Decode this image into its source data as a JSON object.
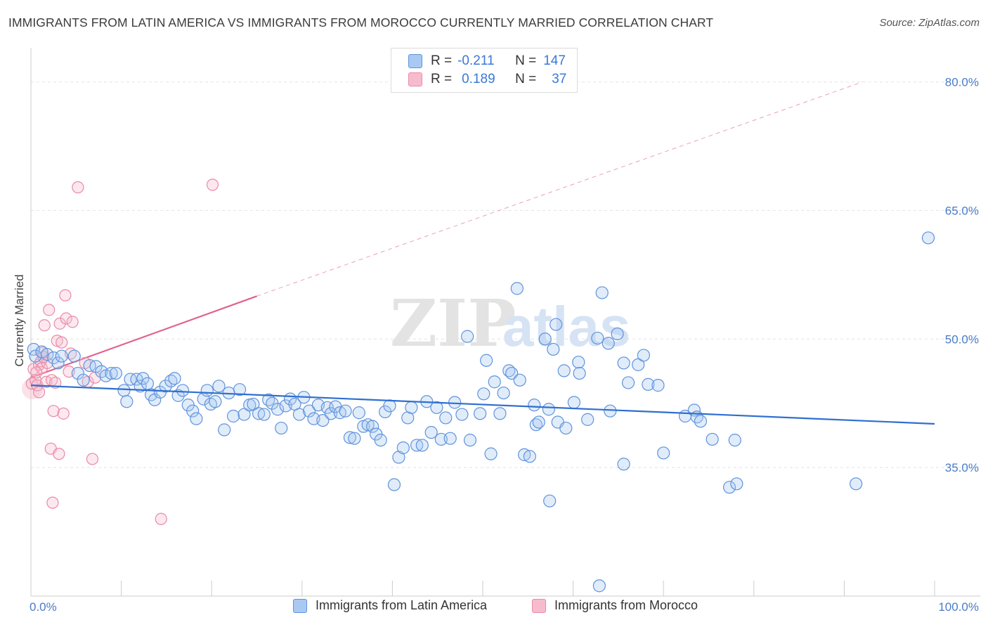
{
  "title": "IMMIGRANTS FROM LATIN AMERICA VS IMMIGRANTS FROM MOROCCO CURRENTLY MARRIED CORRELATION CHART",
  "source": "Source: ZipAtlas.com",
  "watermark": {
    "zip": "ZIP",
    "atlas": "atlas"
  },
  "colors": {
    "blue_fill": "#a9c8f2",
    "blue_stroke": "#5f93db",
    "blue_line": "#2f6fd0",
    "pink_fill": "#f6bccd",
    "pink_stroke": "#e98aa8",
    "pink_line": "#e0618e",
    "axis_text": "#4a7cc7",
    "grid": "#e2e2e2"
  },
  "legend": {
    "rows": [
      {
        "r_label": "R =",
        "r_value": "-0.211",
        "n_label": "N =",
        "n_value": "147"
      },
      {
        "r_label": "R =",
        "r_value": "0.189",
        "n_label": "N =",
        "n_value": "37"
      }
    ]
  },
  "chart_data": {
    "type": "scatter",
    "title": "IMMIGRANTS FROM LATIN AMERICA VS IMMIGRANTS FROM MOROCCO CURRENTLY MARRIED CORRELATION CHART",
    "xlabel": "",
    "ylabel": "Currently Married",
    "xlim": [
      0,
      100
    ],
    "ylim": [
      20,
      83
    ],
    "x_tick_labels": [
      "0.0%",
      "100.0%"
    ],
    "y_ticks": [
      35,
      50,
      65,
      80
    ],
    "y_tick_labels": [
      "35.0%",
      "50.0%",
      "65.0%",
      "80.0%"
    ],
    "grid": true,
    "legend_placement": "top-center and bottom",
    "series": [
      {
        "name": "Immigrants from Latin America",
        "color": "#a9c8f2",
        "trend": {
          "x": [
            0,
            100
          ],
          "y": [
            44.6,
            40.1
          ],
          "style": "solid"
        },
        "points": [
          [
            0.3,
            48.8
          ],
          [
            0.5,
            48.0
          ],
          [
            1.2,
            48.5
          ],
          [
            1.8,
            48.2
          ],
          [
            2.5,
            47.8
          ],
          [
            3.0,
            47.2
          ],
          [
            3.4,
            48.0
          ],
          [
            4.8,
            48.0
          ],
          [
            5.2,
            46.0
          ],
          [
            5.8,
            45.2
          ],
          [
            6.5,
            46.9
          ],
          [
            7.2,
            46.8
          ],
          [
            7.8,
            46.2
          ],
          [
            8.3,
            45.7
          ],
          [
            8.9,
            46.0
          ],
          [
            9.4,
            46.0
          ],
          [
            10.3,
            44.0
          ],
          [
            10.6,
            42.7
          ],
          [
            11.0,
            45.3
          ],
          [
            11.7,
            45.3
          ],
          [
            12.1,
            44.5
          ],
          [
            12.4,
            45.4
          ],
          [
            12.9,
            44.8
          ],
          [
            13.3,
            43.5
          ],
          [
            13.7,
            42.9
          ],
          [
            14.3,
            43.8
          ],
          [
            14.9,
            44.5
          ],
          [
            15.5,
            45.1
          ],
          [
            15.9,
            45.4
          ],
          [
            16.3,
            43.4
          ],
          [
            16.8,
            44.0
          ],
          [
            17.4,
            42.3
          ],
          [
            17.9,
            41.6
          ],
          [
            18.3,
            40.7
          ],
          [
            19.1,
            43.0
          ],
          [
            19.5,
            44.0
          ],
          [
            19.9,
            42.4
          ],
          [
            20.4,
            42.7
          ],
          [
            20.8,
            44.5
          ],
          [
            21.4,
            39.4
          ],
          [
            21.9,
            43.7
          ],
          [
            22.4,
            41.0
          ],
          [
            23.1,
            44.1
          ],
          [
            23.6,
            41.2
          ],
          [
            24.2,
            42.3
          ],
          [
            24.6,
            42.4
          ],
          [
            25.2,
            41.3
          ],
          [
            25.8,
            41.2
          ],
          [
            26.3,
            42.9
          ],
          [
            26.7,
            42.5
          ],
          [
            27.3,
            41.8
          ],
          [
            27.7,
            39.6
          ],
          [
            28.2,
            42.2
          ],
          [
            28.7,
            43.0
          ],
          [
            29.2,
            42.4
          ],
          [
            29.7,
            41.2
          ],
          [
            30.2,
            43.2
          ],
          [
            30.8,
            41.6
          ],
          [
            31.3,
            40.7
          ],
          [
            31.8,
            42.3
          ],
          [
            32.3,
            40.5
          ],
          [
            32.8,
            42.0
          ],
          [
            33.2,
            41.3
          ],
          [
            33.7,
            42.1
          ],
          [
            34.2,
            41.4
          ],
          [
            34.8,
            41.6
          ],
          [
            35.3,
            38.5
          ],
          [
            35.8,
            38.4
          ],
          [
            36.3,
            41.4
          ],
          [
            36.8,
            39.8
          ],
          [
            37.3,
            40.0
          ],
          [
            37.8,
            39.8
          ],
          [
            38.2,
            38.9
          ],
          [
            38.7,
            38.2
          ],
          [
            39.2,
            41.5
          ],
          [
            39.7,
            42.2
          ],
          [
            40.2,
            33.0
          ],
          [
            40.7,
            36.2
          ],
          [
            41.2,
            37.3
          ],
          [
            41.7,
            40.8
          ],
          [
            42.1,
            42.0
          ],
          [
            42.7,
            37.6
          ],
          [
            43.3,
            37.6
          ],
          [
            43.8,
            42.7
          ],
          [
            44.3,
            39.1
          ],
          [
            44.9,
            42.0
          ],
          [
            45.4,
            38.3
          ],
          [
            45.9,
            40.8
          ],
          [
            46.4,
            38.4
          ],
          [
            46.9,
            42.6
          ],
          [
            47.7,
            41.2
          ],
          [
            48.3,
            50.3
          ],
          [
            48.6,
            38.2
          ],
          [
            49.7,
            41.3
          ],
          [
            50.1,
            43.6
          ],
          [
            50.4,
            47.5
          ],
          [
            50.9,
            36.6
          ],
          [
            51.3,
            45.0
          ],
          [
            51.9,
            41.3
          ],
          [
            52.3,
            43.7
          ],
          [
            52.9,
            46.3
          ],
          [
            53.2,
            46.0
          ],
          [
            54.1,
            45.2
          ],
          [
            54.6,
            36.5
          ],
          [
            55.2,
            36.3
          ],
          [
            55.7,
            42.3
          ],
          [
            55.9,
            40.0
          ],
          [
            56.2,
            40.3
          ],
          [
            56.9,
            50.0
          ],
          [
            57.3,
            41.8
          ],
          [
            57.8,
            48.8
          ],
          [
            58.3,
            40.3
          ],
          [
            59.0,
            46.3
          ],
          [
            59.2,
            39.6
          ],
          [
            60.1,
            42.6
          ],
          [
            60.6,
            47.3
          ],
          [
            60.7,
            46.0
          ],
          [
            61.6,
            40.6
          ],
          [
            62.7,
            50.1
          ],
          [
            63.9,
            49.5
          ],
          [
            64.1,
            41.6
          ],
          [
            64.9,
            50.6
          ],
          [
            65.6,
            47.2
          ],
          [
            66.1,
            44.9
          ],
          [
            67.2,
            47.0
          ],
          [
            67.8,
            48.1
          ],
          [
            68.3,
            44.7
          ],
          [
            69.4,
            44.6
          ],
          [
            70.0,
            36.7
          ],
          [
            72.4,
            41.0
          ],
          [
            73.4,
            41.7
          ],
          [
            73.7,
            40.9
          ],
          [
            74.1,
            40.4
          ],
          [
            75.4,
            38.3
          ],
          [
            77.3,
            32.7
          ],
          [
            77.9,
            38.2
          ],
          [
            78.1,
            33.1
          ],
          [
            91.3,
            33.1
          ],
          [
            99.3,
            61.8
          ],
          [
            53.8,
            55.9
          ],
          [
            63.2,
            55.4
          ],
          [
            58.1,
            51.7
          ],
          [
            62.9,
            21.2
          ],
          [
            57.4,
            31.1
          ],
          [
            65.6,
            35.4
          ]
        ]
      },
      {
        "name": "Immigrants from Morocco",
        "color": "#f6bccd",
        "trend": {
          "x": [
            0,
            25
          ],
          "y": [
            45.5,
            55.0
          ],
          "style": "solid",
          "extension": {
            "x": [
              25,
              92
            ],
            "y": [
              55.0,
              80.0
            ],
            "style": "dashed"
          }
        },
        "points": [
          [
            0.1,
            44.8
          ],
          [
            0.3,
            46.5
          ],
          [
            0.5,
            45.2
          ],
          [
            0.7,
            44.6
          ],
          [
            0.9,
            47.0
          ],
          [
            1.1,
            47.4
          ],
          [
            1.2,
            46.6
          ],
          [
            1.3,
            48.4
          ],
          [
            1.5,
            51.6
          ],
          [
            1.7,
            45.0
          ],
          [
            1.8,
            47.2
          ],
          [
            2.0,
            53.4
          ],
          [
            2.3,
            45.2
          ],
          [
            2.5,
            41.6
          ],
          [
            2.7,
            44.9
          ],
          [
            2.9,
            49.8
          ],
          [
            3.2,
            51.8
          ],
          [
            3.4,
            49.6
          ],
          [
            3.6,
            41.3
          ],
          [
            3.8,
            55.1
          ],
          [
            3.9,
            52.4
          ],
          [
            4.2,
            46.2
          ],
          [
            4.4,
            48.3
          ],
          [
            4.6,
            52.0
          ],
          [
            5.2,
            67.7
          ],
          [
            6.0,
            47.2
          ],
          [
            6.3,
            45.0
          ],
          [
            6.8,
            36.0
          ],
          [
            7.1,
            45.5
          ],
          [
            2.2,
            37.2
          ],
          [
            3.1,
            36.6
          ],
          [
            2.4,
            30.9
          ],
          [
            14.4,
            29.0
          ],
          [
            20.1,
            68.0
          ],
          [
            0.9,
            43.8
          ],
          [
            1.4,
            47.9
          ],
          [
            0.6,
            46.1
          ]
        ]
      }
    ]
  },
  "bottom_legend": [
    {
      "label": "Immigrants from Latin America"
    },
    {
      "label": "Immigrants from Morocco"
    }
  ]
}
